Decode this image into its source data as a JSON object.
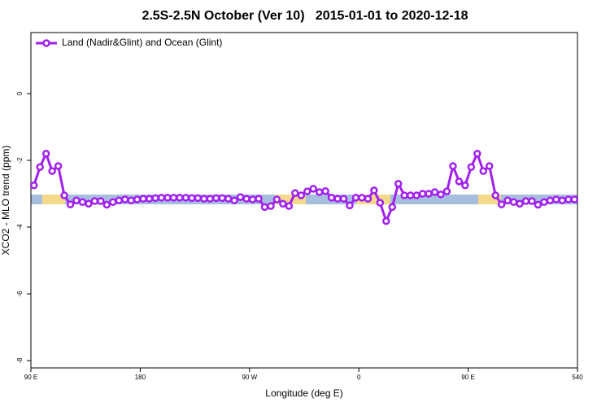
{
  "chart_data": {
    "type": "line",
    "title": "2.5S-2.5N October (Ver 10)   2015-01-01 to 2020-12-18",
    "x_label": "Longitude (deg E)",
    "y_label": "XCO2 - MLO trend (ppm)",
    "x": [
      92.5,
      97.5,
      102.5,
      107.5,
      112.5,
      117.5,
      122.5,
      127.5,
      132.5,
      137.5,
      142.5,
      147.5,
      152.5,
      157.5,
      162.5,
      167.5,
      172.5,
      177.5,
      182.5,
      187.5,
      192.5,
      197.5,
      202.5,
      207.5,
      212.5,
      217.5,
      222.5,
      227.5,
      232.5,
      237.5,
      242.5,
      247.5,
      252.5,
      257.5,
      262.5,
      267.5,
      272.5,
      277.5,
      282.5,
      287.5,
      292.5,
      297.5,
      302.5,
      307.5,
      312.5,
      317.5,
      322.5,
      327.5,
      332.5,
      337.5,
      342.5,
      347.5,
      352.5,
      357.5,
      362.5,
      367.5,
      372.5,
      377.5,
      382.5,
      387.5,
      392.5,
      397.5,
      402.5,
      407.5,
      412.5,
      417.5,
      422.5,
      427.5,
      432.5,
      437.5,
      442.5,
      447.5,
      452.5,
      457.5,
      462.5,
      467.5,
      472.5,
      477.5,
      482.5,
      487.5,
      492.5,
      497.5,
      502.5,
      507.5,
      512.5,
      517.5,
      522.5,
      527.5,
      532.5,
      537.5
    ],
    "series": [
      {
        "name": "Land (Nadir&Glint) and Ocean (Glint)",
        "color": "#a020f0",
        "values": [
          -2.75,
          -2.2,
          -1.8,
          -2.32,
          -2.17,
          -3.05,
          -3.32,
          -3.2,
          -3.25,
          -3.3,
          -3.22,
          -3.22,
          -3.33,
          -3.25,
          -3.2,
          -3.17,
          -3.2,
          -3.17,
          -3.15,
          -3.15,
          -3.13,
          -3.12,
          -3.12,
          -3.12,
          -3.12,
          -3.12,
          -3.13,
          -3.13,
          -3.15,
          -3.15,
          -3.13,
          -3.13,
          -3.15,
          -3.2,
          -3.1,
          -3.15,
          -3.17,
          -3.15,
          -3.4,
          -3.37,
          -3.17,
          -3.3,
          -3.37,
          -2.98,
          -3.05,
          -2.93,
          -2.85,
          -2.95,
          -2.92,
          -3.12,
          -3.15,
          -3.15,
          -3.35,
          -3.12,
          -3.12,
          -3.15,
          -2.9,
          -3.27,
          -3.82,
          -3.4,
          -2.7,
          -3.05,
          -3.05,
          -3.05,
          -3.0,
          -3.0,
          -2.95,
          -3.02,
          -2.93,
          -2.17,
          -2.63,
          -2.75,
          -2.2,
          -1.8,
          -2.32,
          -2.17,
          -3.05,
          -3.32,
          -3.2,
          -3.25,
          -3.3,
          -3.22,
          -3.22,
          -3.33,
          -3.25,
          -3.2,
          -3.17,
          -3.2,
          -3.17,
          -3.17
        ]
      }
    ],
    "xlim": [
      90,
      540
    ],
    "xticks": [
      {
        "value": 90,
        "label": "90 E"
      },
      180,
      {
        "value": 270,
        "label": "90 W"
      },
      {
        "value": 360,
        "label": "0"
      },
      {
        "value": 450,
        "label": "90 E"
      },
      540
    ],
    "ylim": [
      -8.22,
      1.83
    ],
    "yticks": [
      0,
      -2,
      -4,
      -6,
      -8
    ],
    "legend": "top-left"
  }
}
